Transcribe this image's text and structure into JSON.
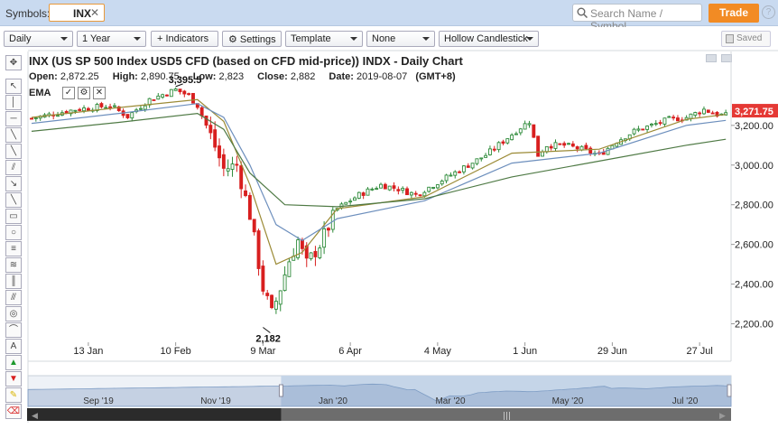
{
  "toolbar_top": {
    "symbols_label": "Symbols:",
    "symbol_value": "INX",
    "clear_glyph": "✕",
    "search_placeholder": "Search Name / Symbol",
    "trade_label": "Trade",
    "help_glyph": "?"
  },
  "toolbar": {
    "interval": "Daily",
    "range": "1 Year",
    "indicators": "Indicators",
    "settings": "Settings",
    "template": "Template",
    "drawing": "None",
    "chart_style": "Hollow Candlestick",
    "saved": "Saved"
  },
  "header": {
    "title": "INX (US SP 500 Index USD5 CFD (based on CFD mid-price)) INDX - Daily Chart",
    "open_label": "Open:",
    "open": "2,872.25",
    "high_label": "High:",
    "high": "2,890.75",
    "low_label": "Low:",
    "low": "2,823",
    "close_label": "Close:",
    "close": "2,882",
    "date_label": "Date:",
    "date": "2019-08-07",
    "tz": "(GMT+8)",
    "indicator": "EMA"
  },
  "colors": {
    "up": "#2e8b3a",
    "down": "#d81f1f",
    "ema_fast": "#9b8a35",
    "ema_mid": "#6d8fbd",
    "ema_slow": "#4f7a45",
    "last_price_bg": "#e53935",
    "navigator_fill": "#c5d5e8"
  },
  "icons": [
    "search-icon",
    "gear-icon",
    "plus-icon",
    "checkmark-icon",
    "settings-icon",
    "close-icon"
  ],
  "chart_data": {
    "type": "candlestick",
    "title": "INX (US SP 500 Index USD5 CFD (based on CFD mid-price)) INDX - Daily Chart",
    "y_ticks": [
      2200,
      2400,
      2600,
      2800,
      3000,
      3200
    ],
    "y_tick_labels": [
      "2,200.00",
      "2,400.00",
      "2,600.00",
      "2,800.00",
      "3,000.00",
      "3,200.00"
    ],
    "ylim": [
      2125,
      3445
    ],
    "x_tick_labels": [
      "13 Jan",
      "10 Feb",
      "9 Mar",
      "6 Apr",
      "4 May",
      "1 Jun",
      "29 Jun",
      "27 Jul"
    ],
    "x_tick_index": [
      13,
      33,
      53,
      73,
      93,
      113,
      133,
      153
    ],
    "last_price": 3271.75,
    "last_price_label": "3,271.75",
    "annotations": [
      {
        "text": "3,395.5",
        "index": 33,
        "value": 3395.5
      },
      {
        "text": "2,182",
        "index": 53,
        "value": 2182
      }
    ],
    "series_ema": [
      {
        "name": "EMA fast",
        "values": [
          [
            0,
            3240
          ],
          [
            20,
            3290
          ],
          [
            38,
            3330
          ],
          [
            44,
            3220
          ],
          [
            50,
            2900
          ],
          [
            56,
            2500
          ],
          [
            62,
            2560
          ],
          [
            70,
            2780
          ],
          [
            90,
            2840
          ],
          [
            110,
            3060
          ],
          [
            130,
            3080
          ],
          [
            150,
            3230
          ],
          [
            159,
            3255
          ]
        ]
      },
      {
        "name": "EMA mid",
        "values": [
          [
            0,
            3210
          ],
          [
            20,
            3260
          ],
          [
            38,
            3310
          ],
          [
            44,
            3240
          ],
          [
            50,
            3000
          ],
          [
            56,
            2700
          ],
          [
            62,
            2620
          ],
          [
            70,
            2730
          ],
          [
            90,
            2820
          ],
          [
            110,
            3010
          ],
          [
            130,
            3060
          ],
          [
            150,
            3200
          ],
          [
            159,
            3225
          ]
        ]
      },
      {
        "name": "EMA slow",
        "values": [
          [
            0,
            3170
          ],
          [
            20,
            3215
          ],
          [
            38,
            3260
          ],
          [
            44,
            3180
          ],
          [
            50,
            2960
          ],
          [
            58,
            2800
          ],
          [
            70,
            2790
          ],
          [
            90,
            2830
          ],
          [
            110,
            2940
          ],
          [
            130,
            3020
          ],
          [
            150,
            3100
          ],
          [
            159,
            3130
          ]
        ]
      }
    ],
    "navigator": {
      "x_labels": [
        "Sep '19",
        "Nov '19",
        "Jan '20",
        "Mar '20",
        "May '20",
        "Jul '20"
      ],
      "window": [
        0.36,
        1.0
      ]
    }
  }
}
